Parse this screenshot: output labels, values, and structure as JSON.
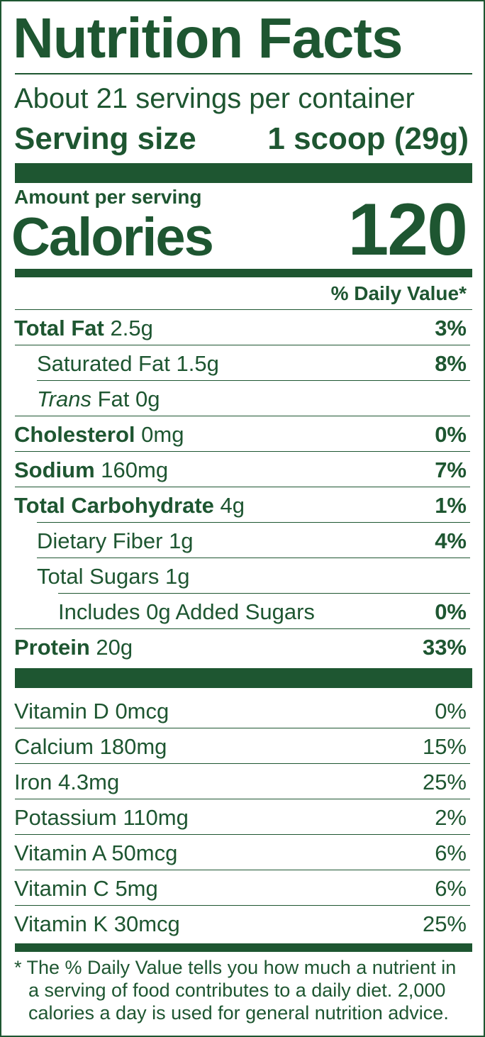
{
  "title": "Nutrition Facts",
  "servings_per_container": "About 21 servings per container",
  "serving_size_label": "Serving size",
  "serving_size_value": "1 scoop (29g)",
  "amount_per_serving": "Amount per serving",
  "calories_label": "Calories",
  "calories_value": "120",
  "daily_value_header": "% Daily Value*",
  "nutrients": [
    {
      "name": "Total Fat",
      "amount": "2.5g",
      "dv": "3%"
    },
    {
      "name": "Saturated Fat",
      "amount": "1.5g",
      "dv": "8%"
    },
    {
      "name": "Trans",
      "name_suffix": "Fat",
      "amount": "0g",
      "dv": ""
    },
    {
      "name": "Cholesterol",
      "amount": "0mg",
      "dv": "0%"
    },
    {
      "name": "Sodium",
      "amount": "160mg",
      "dv": "7%"
    },
    {
      "name": "Total Carbohydrate",
      "amount": "4g",
      "dv": "1%"
    },
    {
      "name": "Dietary Fiber",
      "amount": "1g",
      "dv": "4%"
    },
    {
      "name": "Total Sugars",
      "amount": "1g",
      "dv": ""
    },
    {
      "name": "Includes 0g Added Sugars",
      "amount": "",
      "dv": "0%"
    },
    {
      "name": "Protein",
      "amount": "20g",
      "dv": "33%"
    }
  ],
  "vitamins": [
    {
      "name": "Vitamin D",
      "amount": "0mcg",
      "dv": "0%"
    },
    {
      "name": "Calcium",
      "amount": "180mg",
      "dv": "15%"
    },
    {
      "name": "Iron",
      "amount": "4.3mg",
      "dv": "25%"
    },
    {
      "name": "Potassium",
      "amount": "110mg",
      "dv": "2%"
    },
    {
      "name": "Vitamin A",
      "amount": "50mcg",
      "dv": "6%"
    },
    {
      "name": "Vitamin C",
      "amount": "5mg",
      "dv": "6%"
    },
    {
      "name": "Vitamin K",
      "amount": "30mcg",
      "dv": "25%"
    }
  ],
  "footnote": "* The % Daily Value tells you how much a nutrient in a serving of food contributes to a daily diet. 2,000 calories a day is used for general nutrition advice.",
  "colors": {
    "ink": "#1e5631",
    "background": "#ffffff"
  }
}
